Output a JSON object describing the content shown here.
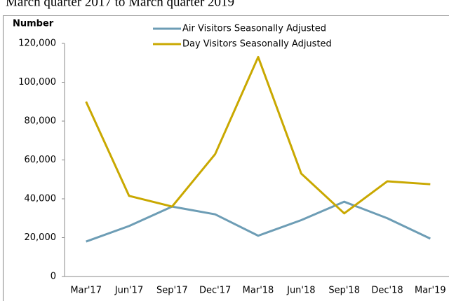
{
  "chart_data": {
    "type": "line",
    "title": "March quarter 2017  to March quarter 2019",
    "y_label": "Number",
    "categories": [
      "Mar'17",
      "Jun'17",
      "Sep'17",
      "Dec'17",
      "Mar'18",
      "Jun'18",
      "Sep'18",
      "Dec'18",
      "Mar'19"
    ],
    "series": [
      {
        "name": "Air Visitors Seasonally Adjusted",
        "color": "#6d9db5",
        "values": [
          18000,
          26000,
          36000,
          32000,
          21000,
          29000,
          38500,
          30000,
          19500
        ]
      },
      {
        "name": "Day Visitors Seasonally Adjusted",
        "color": "#c9a800",
        "values": [
          90000,
          41500,
          36000,
          63000,
          113000,
          53000,
          32500,
          49000,
          47500
        ]
      }
    ],
    "ylim": [
      0,
      120000
    ],
    "yticks": [
      0,
      {
        "value": 20000,
        "label": "20,000"
      },
      {
        "value": 40000,
        "label": "40,000"
      },
      {
        "value": 60000,
        "label": "60,000"
      },
      {
        "value": 80000,
        "label": "80,000"
      },
      {
        "value": 100000,
        "label": "100,000"
      },
      {
        "value": 120000,
        "label": "120,000"
      }
    ],
    "grid": false,
    "legend": "top"
  }
}
